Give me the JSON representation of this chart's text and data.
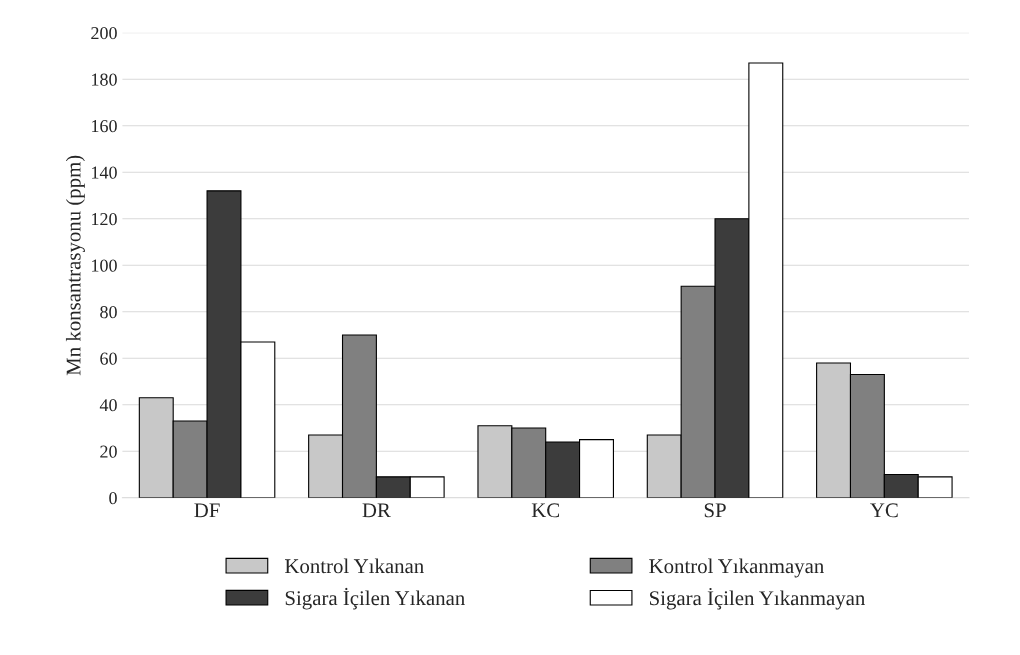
{
  "chart_data": {
    "type": "bar",
    "ylabel": "Mn konsantrasyonu (ppm)",
    "categories": [
      "DF",
      "DR",
      "KC",
      "SP",
      "YC"
    ],
    "series": [
      {
        "name": "Kontrol Yıkanan",
        "color": "#c8c8c8",
        "values": [
          43,
          27,
          31,
          27,
          58
        ]
      },
      {
        "name": "Kontrol Yıkanmayan",
        "color": "#808080",
        "values": [
          33,
          70,
          30,
          91,
          53
        ]
      },
      {
        "name": "Sigara İçilen Yıkanan",
        "color": "#3c3c3c",
        "values": [
          132,
          9,
          24,
          120,
          10
        ]
      },
      {
        "name": "Sigara İçilen Yıkanmayan",
        "color": "#ffffff",
        "values": [
          67,
          9,
          25,
          187,
          9
        ]
      }
    ],
    "ylim": [
      0,
      200
    ],
    "yticks": [
      0,
      20,
      40,
      60,
      80,
      100,
      120,
      140,
      160,
      180,
      200
    ],
    "grid": "y",
    "legend": "bottom"
  }
}
